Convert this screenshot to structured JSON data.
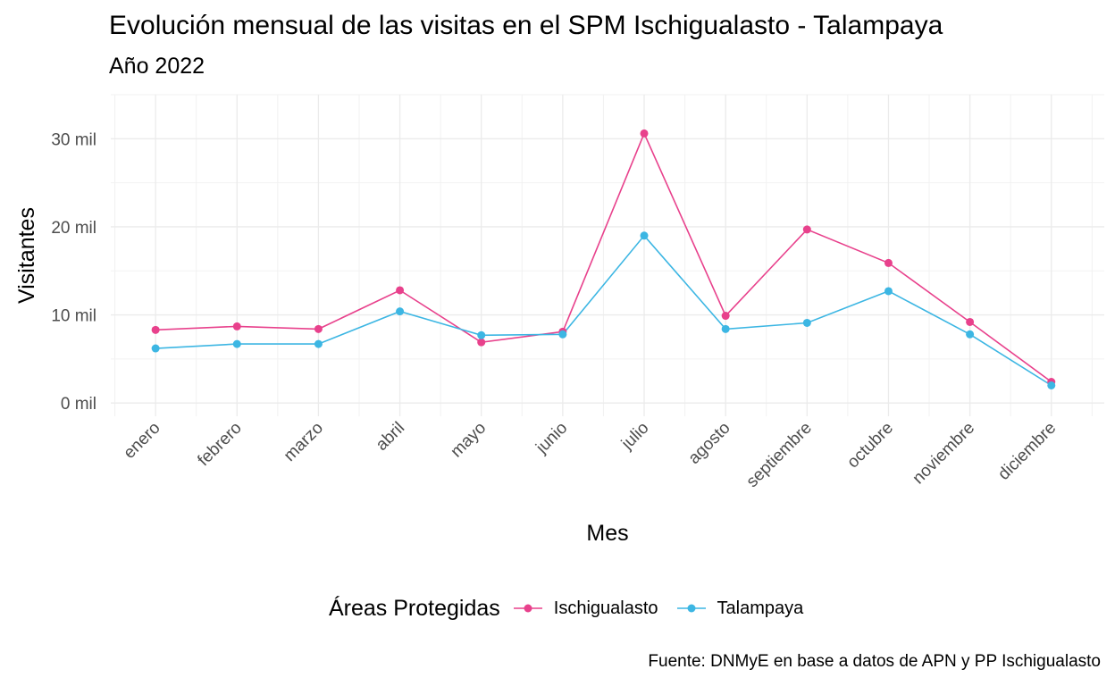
{
  "chart_data": {
    "type": "line",
    "title": "Evolución mensual de las visitas en el SPM Ischigualasto - Talampaya",
    "subtitle": "Año 2022",
    "xlabel": "Mes",
    "ylabel": "Visitantes",
    "categories": [
      "enero",
      "febrero",
      "marzo",
      "abril",
      "mayo",
      "junio",
      "julio",
      "agosto",
      "septiembre",
      "octubre",
      "noviembre",
      "diciembre"
    ],
    "y_ticks": [
      0,
      10000,
      20000,
      30000
    ],
    "y_tick_labels": [
      "0 mil",
      "10 mil",
      "20 mil",
      "30 mil"
    ],
    "ylim": [
      -1500,
      35000
    ],
    "grid": true,
    "legend_title": "Áreas Protegidas",
    "legend_position": "bottom",
    "caption": "Fuente: DNMyE en base a datos de APN y PP Ischigualasto",
    "series": [
      {
        "name": "Ischigualasto",
        "color": "#e8418c",
        "values": [
          8300,
          8700,
          8400,
          12800,
          6900,
          8100,
          30600,
          9900,
          19700,
          15900,
          9200,
          2400
        ]
      },
      {
        "name": "Talampaya",
        "color": "#3cb6e3",
        "values": [
          6200,
          6700,
          6700,
          10400,
          7700,
          7800,
          19000,
          8400,
          9100,
          12700,
          7800,
          2000
        ]
      }
    ]
  }
}
